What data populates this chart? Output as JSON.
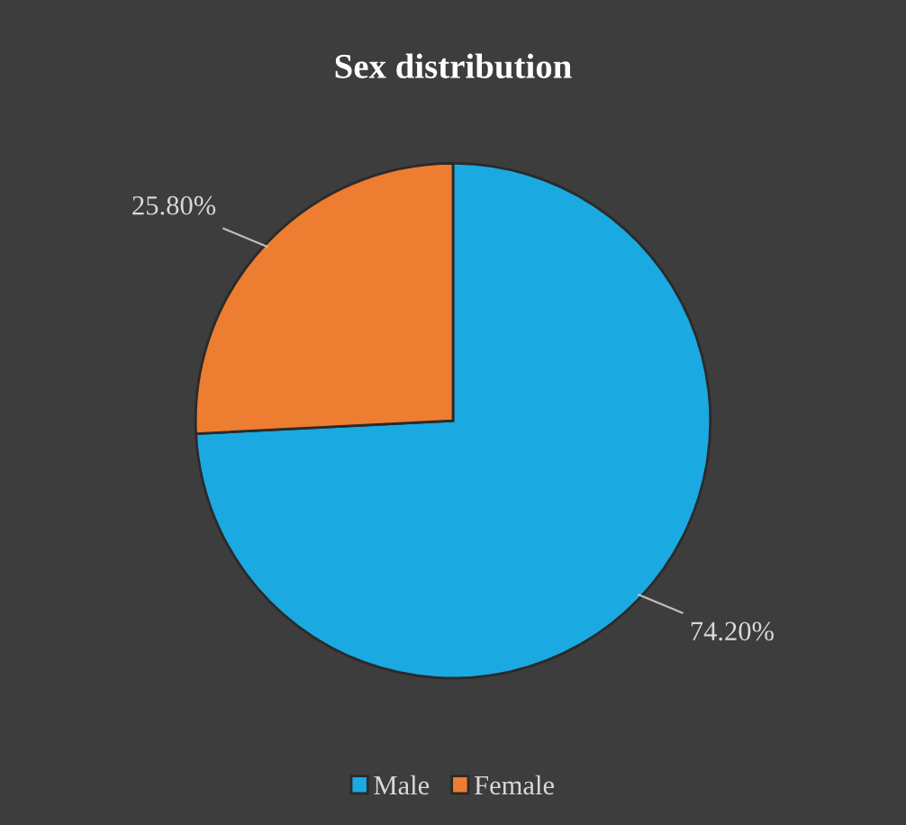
{
  "chart_data": {
    "type": "pie",
    "title": "Sex distribution",
    "categories": [
      "Male",
      "Female"
    ],
    "values": [
      74.2,
      25.8
    ],
    "colors": [
      "#1ba9e1",
      "#ed7d31"
    ],
    "value_labels": [
      "74.20%",
      "25.80%"
    ],
    "legend": "bottom"
  }
}
